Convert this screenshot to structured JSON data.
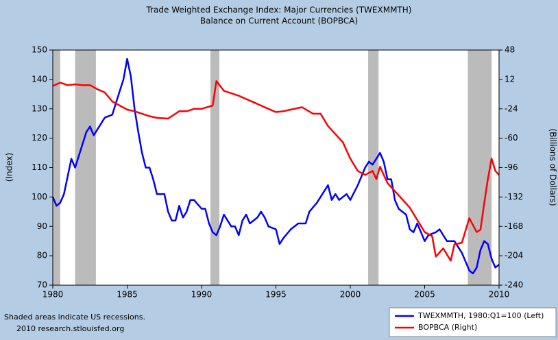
{
  "chart_data": {
    "type": "line",
    "title": [
      "Trade Weighted Exchange Index: Major Currencies (TWEXMMTH)",
      "Balance on Current Account (BOPBCA)"
    ],
    "ylabel": "(Index)",
    "y2label": "(Billions of Dollars)",
    "footnote": [
      "Shaded areas indicate US recessions.",
      "2010 research.stlouisfed.org"
    ],
    "xlim": [
      1980,
      2010
    ],
    "xticks": [
      1980,
      1985,
      1990,
      1995,
      2000,
      2005,
      2010
    ],
    "ylim": [
      70,
      150
    ],
    "yticks": [
      70,
      80,
      90,
      100,
      110,
      120,
      130,
      140,
      150
    ],
    "y2lim": [
      -240,
      48
    ],
    "y2ticks": [
      -240,
      -204,
      -168,
      -132,
      -96,
      -60,
      -24,
      12,
      48
    ],
    "recessions": [
      [
        1980.0,
        1980.5
      ],
      [
        1981.5,
        1982.9
      ],
      [
        1990.6,
        1991.2
      ],
      [
        2001.2,
        2001.9
      ],
      [
        2007.9,
        2009.5
      ]
    ],
    "recession_color": "#bbbbbb",
    "series": [
      {
        "name": "TWEXMMTH, 1980:Q1=100 (Left)",
        "color": "#0000ff",
        "axis": "y",
        "x": [
          1980.0,
          1980.25,
          1980.5,
          1980.75,
          1981.0,
          1981.25,
          1981.5,
          1981.75,
          1982.0,
          1982.25,
          1982.5,
          1982.75,
          1983.0,
          1983.5,
          1984.0,
          1984.5,
          1984.75,
          1985.0,
          1985.25,
          1985.5,
          1985.75,
          1986.0,
          1986.25,
          1986.5,
          1986.75,
          1987.0,
          1987.5,
          1987.75,
          1988.0,
          1988.25,
          1988.5,
          1988.75,
          1989.0,
          1989.25,
          1989.5,
          1990.0,
          1990.25,
          1990.5,
          1990.75,
          1991.0,
          1991.25,
          1991.5,
          1991.75,
          1992.0,
          1992.25,
          1992.5,
          1992.75,
          1993.0,
          1993.25,
          1993.75,
          1994.0,
          1994.25,
          1994.5,
          1995.0,
          1995.25,
          1995.5,
          1996.0,
          1996.5,
          1997.0,
          1997.25,
          1997.75,
          1998.25,
          1998.5,
          1998.75,
          1999.0,
          1999.25,
          1999.75,
          2000.0,
          2000.5,
          2001.0,
          2001.25,
          2001.5,
          2001.75,
          2002.0,
          2002.25,
          2002.5,
          2002.75,
          2003.0,
          2003.25,
          2003.75,
          2004.0,
          2004.25,
          2004.5,
          2004.75,
          2005.0,
          2005.25,
          2005.75,
          2006.0,
          2006.5,
          2007.0,
          2007.25,
          2007.5,
          2007.75,
          2008.0,
          2008.25,
          2008.5,
          2008.75,
          2009.0,
          2009.25,
          2009.5,
          2009.75,
          2010.0
        ],
        "values": [
          100,
          97,
          98,
          101,
          107,
          113,
          110,
          114,
          118,
          122,
          124,
          121,
          123,
          127,
          128,
          136,
          140,
          147,
          141,
          130,
          122,
          115,
          110,
          110,
          106,
          101,
          101,
          95,
          92,
          92,
          97,
          93,
          95,
          99,
          99,
          96,
          96,
          91,
          88,
          87,
          90,
          94,
          92,
          90,
          90,
          87,
          92,
          94,
          91,
          93,
          95,
          93,
          90,
          89,
          84,
          86,
          89,
          91,
          91,
          95,
          98,
          102,
          104,
          99,
          101,
          99,
          101,
          99,
          104,
          110,
          112,
          111,
          113,
          115,
          112,
          106,
          106,
          99,
          96,
          94,
          89,
          88,
          91,
          88,
          85,
          87,
          88,
          89,
          85,
          85,
          83,
          81,
          78,
          75,
          74,
          76,
          82,
          85,
          84,
          79,
          76,
          77
        ]
      },
      {
        "name": "BOPBCA (Right)",
        "color": "#ff0000",
        "axis": "y2",
        "x": [
          1980.0,
          1980.5,
          1981.0,
          1981.5,
          1982.0,
          1982.5,
          1983.0,
          1983.5,
          1984.0,
          1984.5,
          1985.0,
          1985.5,
          1986.0,
          1986.5,
          1987.0,
          1987.75,
          1988.5,
          1989.0,
          1989.5,
          1990.0,
          1990.75,
          1991.0,
          1991.5,
          1992.0,
          1992.5,
          1993.0,
          1993.5,
          1994.0,
          1994.5,
          1995.0,
          1995.5,
          1996.0,
          1996.75,
          1997.5,
          1998.0,
          1998.5,
          1999.0,
          1999.5,
          2000.0,
          2000.5,
          2001.0,
          2001.5,
          2001.75,
          2002.0,
          2002.5,
          2003.0,
          2003.5,
          2004.0,
          2004.5,
          2005.0,
          2005.5,
          2005.75,
          2006.25,
          2006.75,
          2007.0,
          2007.5,
          2008.0,
          2008.5,
          2008.75,
          2009.0,
          2009.25,
          2009.5,
          2009.75,
          2010.0
        ],
        "values": [
          4,
          8,
          5,
          6,
          5,
          5,
          0,
          -4,
          -15,
          -20,
          -25,
          -27,
          -30,
          -33,
          -35,
          -36,
          -27,
          -27,
          -24,
          -24,
          -20,
          10,
          -2,
          -5,
          -8,
          -12,
          -16,
          -20,
          -24,
          -28,
          -27,
          -25,
          -22,
          -30,
          -30,
          -45,
          -55,
          -65,
          -85,
          -100,
          -105,
          -100,
          -110,
          -95,
          -115,
          -125,
          -135,
          -145,
          -160,
          -175,
          -180,
          -205,
          -195,
          -210,
          -190,
          -188,
          -158,
          -175,
          -172,
          -140,
          -110,
          -85,
          -100,
          -105
        ]
      }
    ]
  }
}
